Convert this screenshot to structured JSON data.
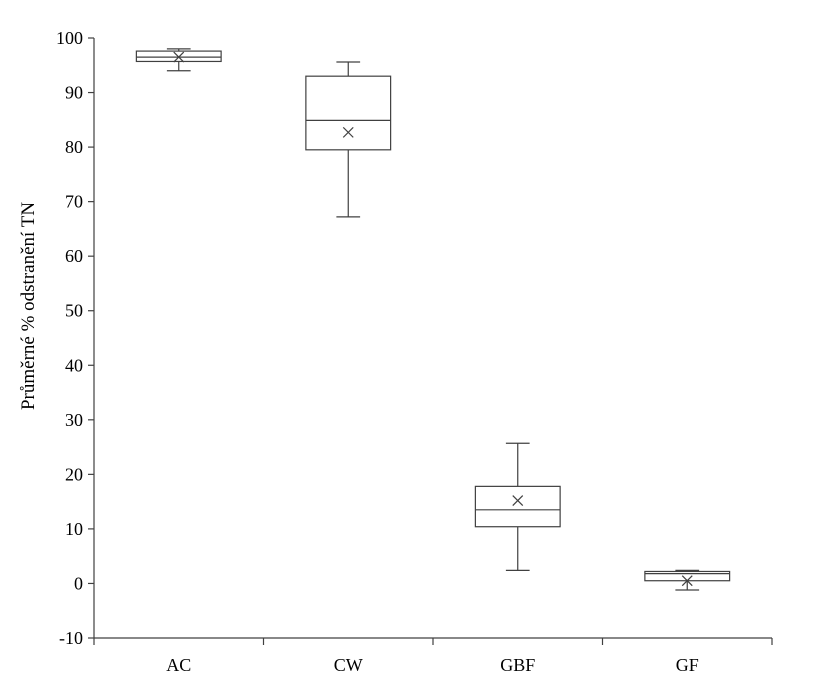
{
  "chart_data": {
    "type": "box",
    "ylabel": "Průměrné % odstranění TN",
    "xlabel": "",
    "ylim": [
      -10,
      100
    ],
    "yticks": [
      -10,
      0,
      10,
      20,
      30,
      40,
      50,
      60,
      70,
      80,
      90,
      100
    ],
    "categories": [
      "AC",
      "CW",
      "GBF",
      "GF"
    ],
    "boxes": [
      {
        "category": "AC",
        "min": 94.0,
        "q1": 95.7,
        "median": 96.5,
        "q3": 97.6,
        "max": 98.0,
        "mean": 96.5
      },
      {
        "category": "CW",
        "min": 67.2,
        "q1": 79.5,
        "median": 84.9,
        "q3": 93.0,
        "max": 95.6,
        "mean": 82.7
      },
      {
        "category": "GBF",
        "min": 2.4,
        "q1": 10.4,
        "median": 13.5,
        "q3": 17.8,
        "max": 25.7,
        "mean": 15.2
      },
      {
        "category": "GF",
        "min": -1.2,
        "q1": 0.5,
        "median": 1.8,
        "q3": 2.2,
        "max": 2.4,
        "mean": 0.5
      }
    ],
    "colors": {
      "line": "#404040",
      "box_fill": "#ffffff",
      "text": "#000000"
    },
    "grid": false,
    "legend": "none"
  }
}
